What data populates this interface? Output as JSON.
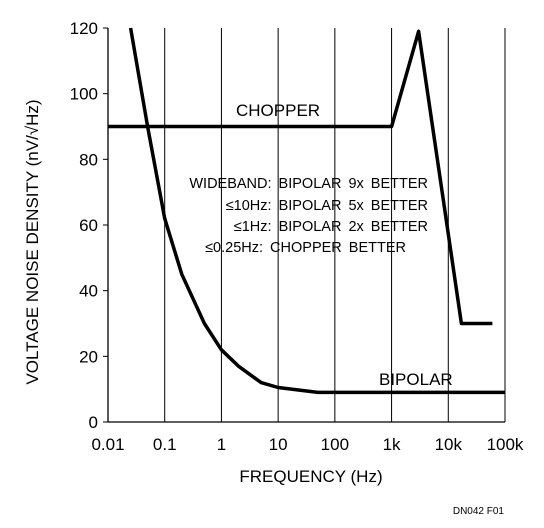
{
  "chart_data": {
    "type": "line",
    "xlabel": "FREQUENCY (Hz)",
    "ylabel": "VOLTAGE NOISE DENSITY (nV/√Hz)",
    "xscale": "log",
    "xlim": [
      0.01,
      100000
    ],
    "ylim": [
      0,
      120
    ],
    "x_ticks": [
      0.01,
      0.1,
      1,
      10,
      100,
      1000,
      10000,
      100000
    ],
    "x_tick_labels": [
      "0.01",
      "0.1",
      "1",
      "10",
      "100",
      "1k",
      "10k",
      "100k"
    ],
    "y_ticks": [
      0,
      20,
      40,
      60,
      80,
      100,
      120
    ],
    "y_tick_labels": [
      "0",
      "20",
      "40",
      "60",
      "80",
      "100",
      "120"
    ],
    "grid": "vertical decade lines",
    "series": [
      {
        "name": "CHOPPER",
        "x": [
          0.01,
          1000,
          3000,
          17000,
          60000
        ],
        "y": [
          90,
          90,
          119,
          30,
          30
        ]
      },
      {
        "name": "BIPOLAR",
        "x": [
          0.025,
          0.05,
          0.1,
          0.2,
          0.5,
          1,
          2,
          5,
          10,
          50,
          100,
          1000,
          100000
        ],
        "y": [
          120,
          90,
          62,
          45,
          30,
          22,
          17,
          12,
          10.5,
          9,
          9,
          9,
          9
        ]
      }
    ],
    "annotations": [
      "WIDEBAND:  BIPOLAR  9x  BETTER",
      "≤10Hz:  BIPOLAR  5x  BETTER",
      "≤1Hz:  BIPOLAR  2x  BETTER",
      "≤0.25Hz:  CHOPPER  BETTER"
    ],
    "figure_id": "DN042 F01",
    "colors": {
      "lines": "#000000",
      "grid": "#000000",
      "background": "#ffffff"
    }
  }
}
